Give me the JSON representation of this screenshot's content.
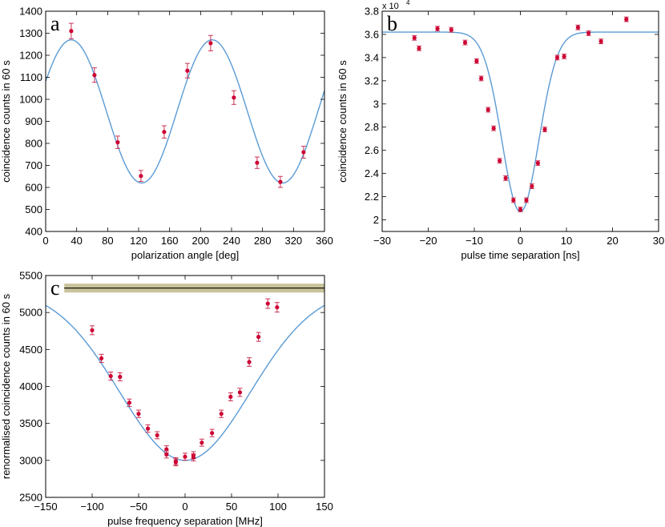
{
  "colors": {
    "fit": "#5b9bd5",
    "points": "#cc0033",
    "error": "#cc3355",
    "band": "#c8c39a",
    "line": "#000000"
  },
  "chart_data": [
    {
      "type": "scatter",
      "panel_label": "a",
      "title": "",
      "xlabel": "polarization angle [deg]",
      "ylabel": "coincidence counts in 60 s",
      "xlim": [
        0,
        360
      ],
      "ylim": [
        400,
        1400
      ],
      "xticks": [
        0,
        40,
        80,
        120,
        160,
        200,
        240,
        280,
        320,
        360
      ],
      "yticks": [
        400,
        500,
        600,
        700,
        800,
        900,
        1000,
        1100,
        1200,
        1300,
        1400
      ],
      "points": [
        {
          "x": 33,
          "y": 1310,
          "err": 35
        },
        {
          "x": 63,
          "y": 1110,
          "err": 33
        },
        {
          "x": 93,
          "y": 805,
          "err": 28
        },
        {
          "x": 123,
          "y": 652,
          "err": 25
        },
        {
          "x": 153,
          "y": 852,
          "err": 28
        },
        {
          "x": 183,
          "y": 1130,
          "err": 33
        },
        {
          "x": 213,
          "y": 1255,
          "err": 35
        },
        {
          "x": 243,
          "y": 1008,
          "err": 31
        },
        {
          "x": 273,
          "y": 712,
          "err": 26
        },
        {
          "x": 303,
          "y": 625,
          "err": 25
        },
        {
          "x": 333,
          "y": 760,
          "err": 27
        }
      ],
      "fit": {
        "kind": "cosine",
        "mean": 945,
        "amplitude": 325,
        "period": 182,
        "peak": 33
      }
    },
    {
      "type": "scatter",
      "panel_label": "b",
      "title": "",
      "multiplier": "x 10",
      "multiplier_exp": "4",
      "xlabel": "pulse time separation [ns]",
      "ylabel": "coincidence counts in 60 s",
      "xlim": [
        -30,
        30
      ],
      "ylim": [
        1.9,
        3.8
      ],
      "xticks": [
        -30,
        -20,
        -10,
        0,
        10,
        20,
        30
      ],
      "yticks": [
        2,
        2.2,
        2.4,
        2.6,
        2.8,
        3,
        3.2,
        3.4,
        3.6,
        3.8
      ],
      "points": [
        {
          "x": -23,
          "y": 3.57,
          "err": 0.02
        },
        {
          "x": -22,
          "y": 3.48,
          "err": 0.02
        },
        {
          "x": -18,
          "y": 3.65,
          "err": 0.02
        },
        {
          "x": -15,
          "y": 3.64,
          "err": 0.02
        },
        {
          "x": -12,
          "y": 3.53,
          "err": 0.02
        },
        {
          "x": -9.5,
          "y": 3.37,
          "err": 0.02
        },
        {
          "x": -8.5,
          "y": 3.22,
          "err": 0.02
        },
        {
          "x": -7,
          "y": 2.95,
          "err": 0.02
        },
        {
          "x": -5.8,
          "y": 2.79,
          "err": 0.02
        },
        {
          "x": -4.5,
          "y": 2.51,
          "err": 0.02
        },
        {
          "x": -3.2,
          "y": 2.36,
          "err": 0.02
        },
        {
          "x": -1.5,
          "y": 2.17,
          "err": 0.02
        },
        {
          "x": 0,
          "y": 2.09,
          "err": 0.02
        },
        {
          "x": 1.3,
          "y": 2.17,
          "err": 0.02
        },
        {
          "x": 2.5,
          "y": 2.29,
          "err": 0.02
        },
        {
          "x": 3.8,
          "y": 2.49,
          "err": 0.02
        },
        {
          "x": 5.3,
          "y": 2.78,
          "err": 0.02
        },
        {
          "x": 8,
          "y": 3.4,
          "err": 0.02
        },
        {
          "x": 9.5,
          "y": 3.41,
          "err": 0.02
        },
        {
          "x": 12.5,
          "y": 3.66,
          "err": 0.02
        },
        {
          "x": 14.8,
          "y": 3.61,
          "err": 0.02
        },
        {
          "x": 17.5,
          "y": 3.54,
          "err": 0.02
        },
        {
          "x": 23,
          "y": 3.73,
          "err": 0.02
        }
      ],
      "fit": {
        "kind": "gaussian-dip",
        "baseline": 3.62,
        "depth": 1.55,
        "center": 0,
        "sigma": 4.0
      }
    },
    {
      "type": "scatter",
      "panel_label": "c",
      "title": "",
      "xlabel": "pulse frequency separation [MHz]",
      "ylabel": "renormalised coincidence counts in 60 s",
      "xlim": [
        -150,
        150
      ],
      "ylim": [
        2500,
        5500
      ],
      "xticks": [
        -150,
        -100,
        -50,
        0,
        50,
        100,
        150
      ],
      "yticks": [
        2500,
        3000,
        3500,
        4000,
        4500,
        5000,
        5500
      ],
      "points": [
        {
          "x": -100,
          "y": 4760,
          "err": 60
        },
        {
          "x": -90,
          "y": 4380,
          "err": 55
        },
        {
          "x": -80,
          "y": 4140,
          "err": 55
        },
        {
          "x": -70,
          "y": 4130,
          "err": 55
        },
        {
          "x": -60,
          "y": 3780,
          "err": 50
        },
        {
          "x": -50,
          "y": 3630,
          "err": 50
        },
        {
          "x": -40,
          "y": 3430,
          "err": 50
        },
        {
          "x": -30,
          "y": 3340,
          "err": 48
        },
        {
          "x": -20,
          "y": 3150,
          "err": 48
        },
        {
          "x": -20,
          "y": 3080,
          "err": 48
        },
        {
          "x": -10,
          "y": 2990,
          "err": 48
        },
        {
          "x": -10,
          "y": 2975,
          "err": 48
        },
        {
          "x": 0,
          "y": 3050,
          "err": 48
        },
        {
          "x": 9,
          "y": 3070,
          "err": 48
        },
        {
          "x": 9,
          "y": 3040,
          "err": 48
        },
        {
          "x": 18,
          "y": 3240,
          "err": 48
        },
        {
          "x": 29,
          "y": 3370,
          "err": 50
        },
        {
          "x": 39,
          "y": 3630,
          "err": 50
        },
        {
          "x": 49,
          "y": 3860,
          "err": 55
        },
        {
          "x": 59,
          "y": 3920,
          "err": 55
        },
        {
          "x": 69,
          "y": 4330,
          "err": 58
        },
        {
          "x": 79,
          "y": 4670,
          "err": 60
        },
        {
          "x": 89,
          "y": 5120,
          "err": 65
        },
        {
          "x": 99,
          "y": 5070,
          "err": 65
        }
      ],
      "fit": {
        "kind": "gaussian-dip",
        "baseline": 5330,
        "depth": 2330,
        "center": 0,
        "sigma": 70
      },
      "reference": {
        "y": 5330,
        "band_low": 5270,
        "band_high": 5390,
        "x_start": -130
      }
    }
  ]
}
